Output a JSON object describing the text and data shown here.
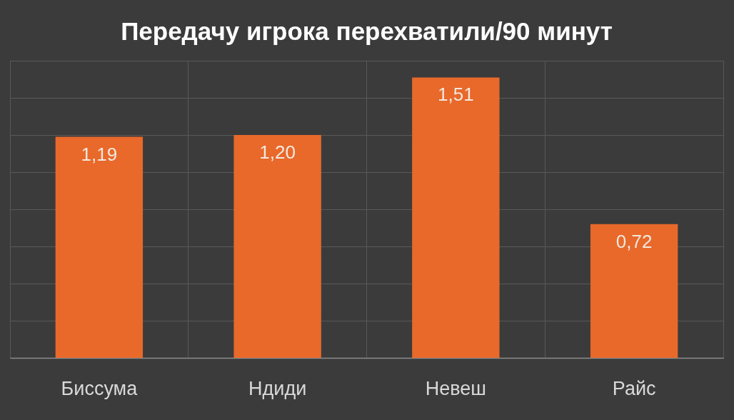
{
  "chart_data": {
    "type": "bar",
    "title": "Передачу игрока перехватили/90 минут",
    "categories": [
      "Биссума",
      "Ндиди",
      "Невеш",
      "Райс"
    ],
    "values": [
      1.19,
      1.2,
      1.51,
      0.72
    ],
    "value_labels": [
      "1,19",
      "1,20",
      "1,51",
      "0,72"
    ],
    "color": "#e8692a",
    "ylim": [
      0,
      1.6
    ],
    "yticks": [
      {
        "value": 0,
        "label": null
      },
      {
        "value": 0.2,
        "label": null
      },
      {
        "value": 0.4,
        "label": null
      },
      {
        "value": 0.6,
        "label": null
      },
      {
        "value": 0.8,
        "label": null
      },
      {
        "value": 1.0,
        "label": null
      },
      {
        "value": 1.2,
        "label": null
      },
      {
        "value": 1.4,
        "label": null
      },
      {
        "value": 1.6,
        "label": null
      }
    ],
    "grid": true,
    "tick_labels": "x"
  }
}
